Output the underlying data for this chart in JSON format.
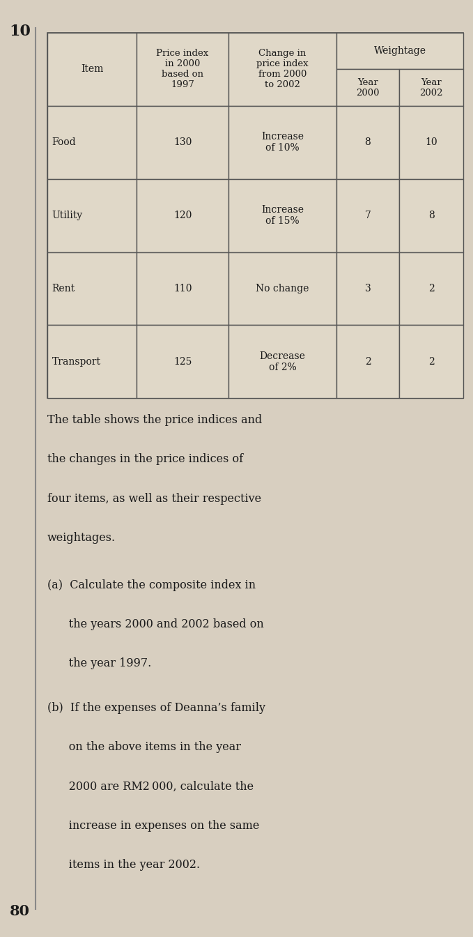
{
  "question_number": "10",
  "page_number": "80",
  "background_color": "#d8cfc0",
  "table": {
    "rows": [
      [
        "Food",
        "130",
        "Increase\nof 10%",
        "8",
        "10"
      ],
      [
        "Utility",
        "120",
        "Increase\nof 15%",
        "7",
        "8"
      ],
      [
        "Rent",
        "110",
        "No change",
        "3",
        "2"
      ],
      [
        "Transport",
        "125",
        "Decrease\nof 2%",
        "2",
        "2"
      ]
    ]
  },
  "para_lines": [
    "The table shows the price indices and",
    "the changes in the price indices of",
    "four items, as well as their respective",
    "weightages."
  ],
  "part_a_lines": [
    "(a)  Calculate the composite index in",
    "      the years 2000 and 2002 based on",
    "      the year 1997."
  ],
  "part_b_lines": [
    "(b)  If the expenses of Deanna’s family",
    "      on the above items in the year",
    "      2000 are RM2 000, calculate the",
    "      increase in expenses on the same",
    "      items in the year 2002."
  ],
  "font_color": "#1a1a1a",
  "table_border_color": "#555555",
  "table_bg": "#e0d8c8"
}
